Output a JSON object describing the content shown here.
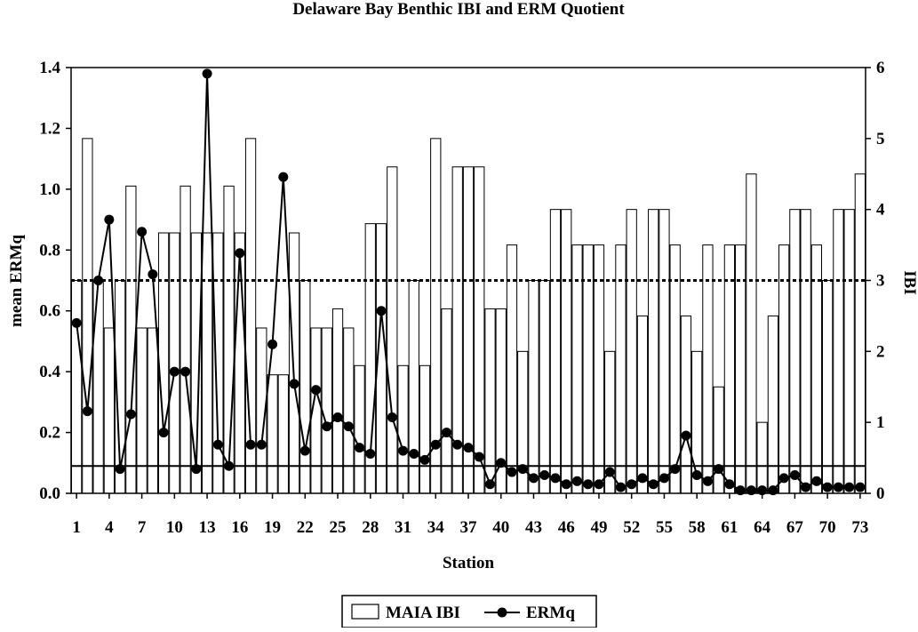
{
  "chart_data": {
    "type": "bar",
    "title": "Delaware Bay Benthic IBI and ERM Quotient",
    "xlabel": "Station",
    "ylabel": "mean ERMq",
    "y2label": "IBI",
    "ylim": [
      0,
      1.4
    ],
    "y2lim": [
      0,
      6
    ],
    "yticks": [
      "0.0",
      "0.2",
      "0.4",
      "0.6",
      "0.8",
      "1.0",
      "1.2",
      "1.4"
    ],
    "y2ticks": [
      "0",
      "1",
      "2",
      "3",
      "4",
      "5",
      "6"
    ],
    "xticks": [
      "1",
      "4",
      "7",
      "10",
      "13",
      "16",
      "19",
      "22",
      "25",
      "28",
      "31",
      "34",
      "37",
      "40",
      "43",
      "46",
      "49",
      "52",
      "55",
      "58",
      "61",
      "64",
      "67",
      "70",
      "73"
    ],
    "stations": [
      1,
      2,
      3,
      4,
      5,
      6,
      7,
      8,
      9,
      10,
      11,
      12,
      13,
      14,
      15,
      16,
      17,
      18,
      19,
      20,
      21,
      22,
      23,
      24,
      25,
      26,
      27,
      28,
      29,
      30,
      31,
      32,
      33,
      34,
      35,
      36,
      37,
      38,
      39,
      40,
      41,
      42,
      43,
      44,
      45,
      46,
      47,
      48,
      49,
      50,
      51,
      52,
      53,
      54,
      55,
      56,
      57,
      58,
      59,
      60,
      61,
      62,
      63,
      64,
      65,
      66,
      67,
      68,
      69,
      70,
      71,
      72,
      73
    ],
    "grid": false,
    "legend_position": "bottom-center",
    "reference_lines": [
      {
        "axis": "y2",
        "value": 3,
        "style": "dotted"
      },
      {
        "axis": "y",
        "value": 0.09,
        "style": "solid"
      }
    ],
    "series": [
      {
        "name": "MAIA IBI",
        "type": "bar",
        "axis": "y2",
        "values": [
          3,
          5,
          3,
          2.33,
          3,
          4.33,
          2.33,
          2.33,
          3.67,
          3.67,
          4.33,
          3.67,
          3.67,
          3.67,
          4.33,
          3.67,
          5,
          2.33,
          1.67,
          1.67,
          3.67,
          3,
          2.33,
          2.33,
          2.6,
          2.33,
          1.8,
          3.8,
          3.8,
          4.6,
          1.8,
          3,
          1.8,
          5,
          2.6,
          4.6,
          4.6,
          4.6,
          2.6,
          2.6,
          3.5,
          2,
          3,
          3,
          4,
          4,
          3.5,
          3.5,
          3.5,
          2,
          3.5,
          4,
          2.5,
          4,
          4,
          3.5,
          2.5,
          2,
          3.5,
          1.5,
          3.5,
          3.5,
          4.5,
          1,
          2.5,
          3.5,
          4,
          4,
          3.5,
          3,
          4,
          4,
          4.5
        ]
      },
      {
        "name": "ERMq",
        "type": "line",
        "axis": "y",
        "values": [
          0.56,
          0.27,
          0.7,
          0.9,
          0.08,
          0.26,
          0.86,
          0.72,
          0.2,
          0.4,
          0.4,
          0.08,
          1.38,
          0.16,
          0.09,
          0.79,
          0.16,
          0.16,
          0.49,
          1.04,
          0.36,
          0.14,
          0.34,
          0.22,
          0.25,
          0.22,
          0.15,
          0.13,
          0.6,
          0.25,
          0.14,
          0.13,
          0.11,
          0.16,
          0.2,
          0.16,
          0.15,
          0.12,
          0.03,
          0.1,
          0.07,
          0.08,
          0.05,
          0.06,
          0.05,
          0.03,
          0.04,
          0.03,
          0.03,
          0.07,
          0.02,
          0.03,
          0.05,
          0.03,
          0.05,
          0.08,
          0.19,
          0.06,
          0.04,
          0.08,
          0.03,
          0.01,
          0.01,
          0.01,
          0.01,
          0.05,
          0.06,
          0.02,
          0.04,
          0.02,
          0.02,
          0.02,
          0.02
        ]
      }
    ]
  }
}
